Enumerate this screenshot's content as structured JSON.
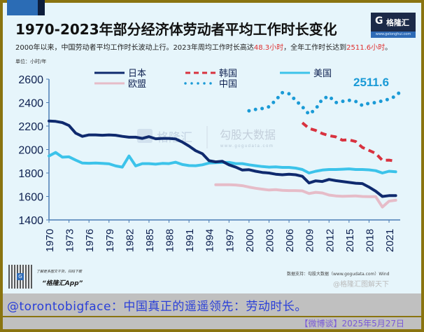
{
  "header": {
    "title": "1970-2023年部分经济体劳动者平均工作时长变化",
    "subtitle_pre": "2000年以来，中国劳动者平均工作时长波动上行。2023年周均工作时长高达",
    "subtitle_hl1": "48.3小时",
    "subtitle_mid": "，全年工作时长达到",
    "subtitle_hl2": "2511.6小时",
    "subtitle_end": "。",
    "unit": "单位：小时/年"
  },
  "logo": {
    "icon": "G",
    "name": "格隆汇",
    "url": "www.gelonghui.com"
  },
  "watermarks": {
    "w1": "格隆汇",
    "w2": "勾股大数据",
    "w2_url": "www.gogudata.com"
  },
  "footer": {
    "promo_line": "了解更多图文干货，扫码下载",
    "app_name": "“格隆汇App”",
    "source": "数据支持：勾股大数据（www.gogudata.com）Wind",
    "weibo_mark": "@格隆汇图解天下",
    "comment": "@torontobigface：中国真正的遥遥领先：劳动时长。",
    "date": "【微博谈】2025年5月27日"
  },
  "colors": {
    "japan": "#0f2a6e",
    "korea": "#d8323f",
    "usa": "#3cc3ea",
    "eu": "#e6bcc8",
    "china": "#1a9ad6",
    "axis": "#4a7db5"
  },
  "chart_data": {
    "type": "line",
    "title": "1970-2023年部分经济体劳动者平均工作时长变化",
    "xlabel": "",
    "ylabel": "单位：小时/年",
    "ylim": [
      1400,
      2600
    ],
    "yticks": [
      1400,
      1600,
      1800,
      2000,
      2200,
      2400,
      2600
    ],
    "xticks": [
      1970,
      1973,
      1976,
      1979,
      1982,
      1985,
      1988,
      1991,
      1994,
      1997,
      2000,
      2003,
      2006,
      2009,
      2012,
      2015,
      2018,
      2021
    ],
    "legend_position": "top",
    "annotation": "2511.6",
    "series": [
      {
        "name": "日本",
        "key": "japan",
        "style": "solid",
        "x": [
          1970,
          1971,
          1972,
          1973,
          1974,
          1975,
          1976,
          1977,
          1978,
          1979,
          1980,
          1981,
          1982,
          1983,
          1984,
          1985,
          1986,
          1987,
          1988,
          1989,
          1990,
          1991,
          1992,
          1993,
          1994,
          1995,
          1996,
          1997,
          1998,
          1999,
          2000,
          2001,
          2002,
          2003,
          2004,
          2005,
          2006,
          2007,
          2008,
          2009,
          2010,
          2011,
          2012,
          2013,
          2014,
          2015,
          2016,
          2017,
          2018,
          2019,
          2020,
          2021,
          2022
        ],
        "y": [
          2243,
          2240,
          2230,
          2205,
          2140,
          2112,
          2125,
          2125,
          2122,
          2125,
          2122,
          2112,
          2105,
          2105,
          2095,
          2110,
          2092,
          2095,
          2095,
          2090,
          2064,
          2030,
          1990,
          1965,
          1905,
          1895,
          1900,
          1870,
          1850,
          1825,
          1828,
          1815,
          1805,
          1800,
          1790,
          1785,
          1790,
          1785,
          1772,
          1715,
          1733,
          1728,
          1745,
          1735,
          1728,
          1720,
          1713,
          1710,
          1680,
          1645,
          1600,
          1607,
          1607
        ]
      },
      {
        "name": "韩国",
        "key": "korea",
        "style": "dashed",
        "x": [
          2008,
          2009,
          2010,
          2011,
          2012,
          2013,
          2014,
          2015,
          2016,
          2017,
          2018,
          2019,
          2020,
          2021,
          2022
        ],
        "y": [
          2228,
          2180,
          2163,
          2136,
          2118,
          2108,
          2080,
          2083,
          2068,
          2018,
          1993,
          1967,
          1908,
          1910,
          1901
        ]
      },
      {
        "name": "美国",
        "key": "usa",
        "style": "solid",
        "x": [
          1970,
          1971,
          1972,
          1973,
          1974,
          1975,
          1976,
          1977,
          1978,
          1979,
          1980,
          1981,
          1982,
          1983,
          1984,
          1985,
          1986,
          1987,
          1988,
          1989,
          1990,
          1991,
          1992,
          1993,
          1994,
          1995,
          1996,
          1997,
          1998,
          1999,
          2000,
          2001,
          2002,
          2003,
          2004,
          2005,
          2006,
          2007,
          2008,
          2009,
          2010,
          2011,
          2012,
          2013,
          2014,
          2015,
          2016,
          2017,
          2018,
          2019,
          2020,
          2021,
          2022
        ],
        "y": [
          1945,
          1975,
          1935,
          1938,
          1910,
          1885,
          1883,
          1885,
          1882,
          1878,
          1860,
          1850,
          1945,
          1860,
          1880,
          1880,
          1875,
          1882,
          1880,
          1892,
          1872,
          1863,
          1862,
          1870,
          1885,
          1888,
          1890,
          1890,
          1880,
          1880,
          1870,
          1862,
          1855,
          1850,
          1852,
          1848,
          1848,
          1842,
          1830,
          1800,
          1815,
          1825,
          1830,
          1830,
          1832,
          1835,
          1830,
          1830,
          1827,
          1820,
          1800,
          1815,
          1810
        ]
      },
      {
        "name": "欧盟",
        "key": "eu",
        "style": "solid",
        "x": [
          1995,
          1996,
          1997,
          1998,
          1999,
          2000,
          2001,
          2002,
          2003,
          2004,
          2005,
          2006,
          2007,
          2008,
          2009,
          2010,
          2011,
          2012,
          2013,
          2014,
          2015,
          2016,
          2017,
          2018,
          2019,
          2020,
          2021,
          2022
        ],
        "y": [
          1700,
          1700,
          1700,
          1698,
          1692,
          1680,
          1670,
          1662,
          1655,
          1658,
          1652,
          1650,
          1650,
          1648,
          1625,
          1635,
          1630,
          1612,
          1605,
          1602,
          1603,
          1605,
          1600,
          1598,
          1598,
          1510,
          1560,
          1568
        ]
      },
      {
        "name": "中国",
        "key": "china",
        "style": "dotted",
        "x": [
          2000,
          2001,
          2002,
          2003,
          2004,
          2005,
          2006,
          2007,
          2008,
          2009,
          2010,
          2011,
          2012,
          2013,
          2014,
          2015,
          2016,
          2017,
          2018,
          2019,
          2020,
          2021,
          2022,
          2023
        ],
        "y": [
          2330,
          2342,
          2350,
          2365,
          2420,
          2485,
          2475,
          2420,
          2365,
          2300,
          2345,
          2430,
          2455,
          2400,
          2410,
          2420,
          2410,
          2375,
          2395,
          2400,
          2415,
          2430,
          2455,
          2511.6
        ]
      }
    ]
  }
}
